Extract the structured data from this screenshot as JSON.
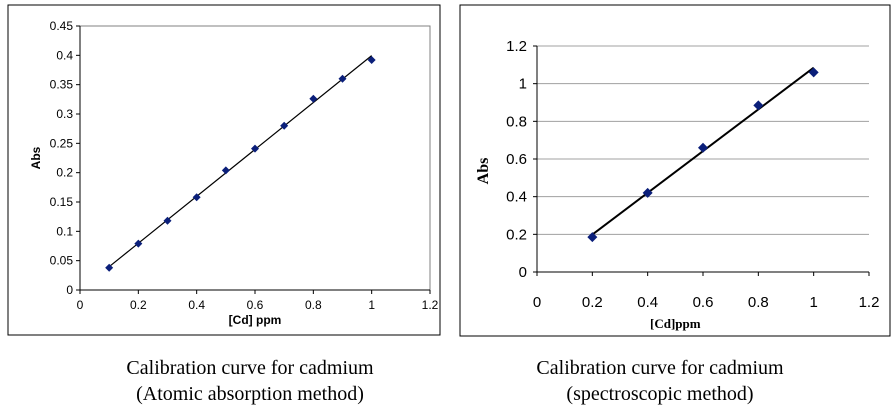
{
  "chart_data": [
    {
      "type": "scatter",
      "title": "",
      "xlabel": "[Cd] ppm",
      "ylabel": "Abs",
      "xlim": [
        0,
        1.2
      ],
      "ylim": [
        0,
        0.45
      ],
      "xticks": [
        "0",
        "0.2",
        "0.4",
        "0.6",
        "0.8",
        "1",
        "1.2"
      ],
      "yticks": [
        "0",
        "0.05",
        "0.1",
        "0.15",
        "0.2",
        "0.25",
        "0.3",
        "0.35",
        "0.4",
        "0.45"
      ],
      "grid": false,
      "trendline": true,
      "series": [
        {
          "x": [
            0.1,
            0.2,
            0.3,
            0.4,
            0.5,
            0.6,
            0.7,
            0.8,
            0.9,
            1.0
          ],
          "y": [
            0.038,
            0.079,
            0.118,
            0.158,
            0.204,
            0.241,
            0.28,
            0.326,
            0.36,
            0.392
          ]
        }
      ],
      "color": "#0b1f7a",
      "caption_lines": [
        "Calibration curve for cadmium",
        "(Atomic absorption method)"
      ]
    },
    {
      "type": "scatter",
      "title": "",
      "xlabel": "[Cd]ppm",
      "ylabel": "Abs",
      "xlim": [
        0,
        1.2
      ],
      "ylim": [
        0,
        1.2
      ],
      "xticks": [
        "0",
        "0.2",
        "0.4",
        "0.6",
        "0.8",
        "1",
        "1.2"
      ],
      "yticks": [
        "0",
        "0.2",
        "0.4",
        "0.6",
        "0.8",
        "1",
        "1.2"
      ],
      "grid": true,
      "trendline": true,
      "series": [
        {
          "x": [
            0.2,
            0.4,
            0.6,
            0.8,
            1.0
          ],
          "y": [
            0.185,
            0.42,
            0.66,
            0.885,
            1.06
          ]
        }
      ],
      "color": "#0b1f7a",
      "caption_lines": [
        "Calibration curve for cadmium",
        "(spectroscopic method)"
      ]
    }
  ]
}
